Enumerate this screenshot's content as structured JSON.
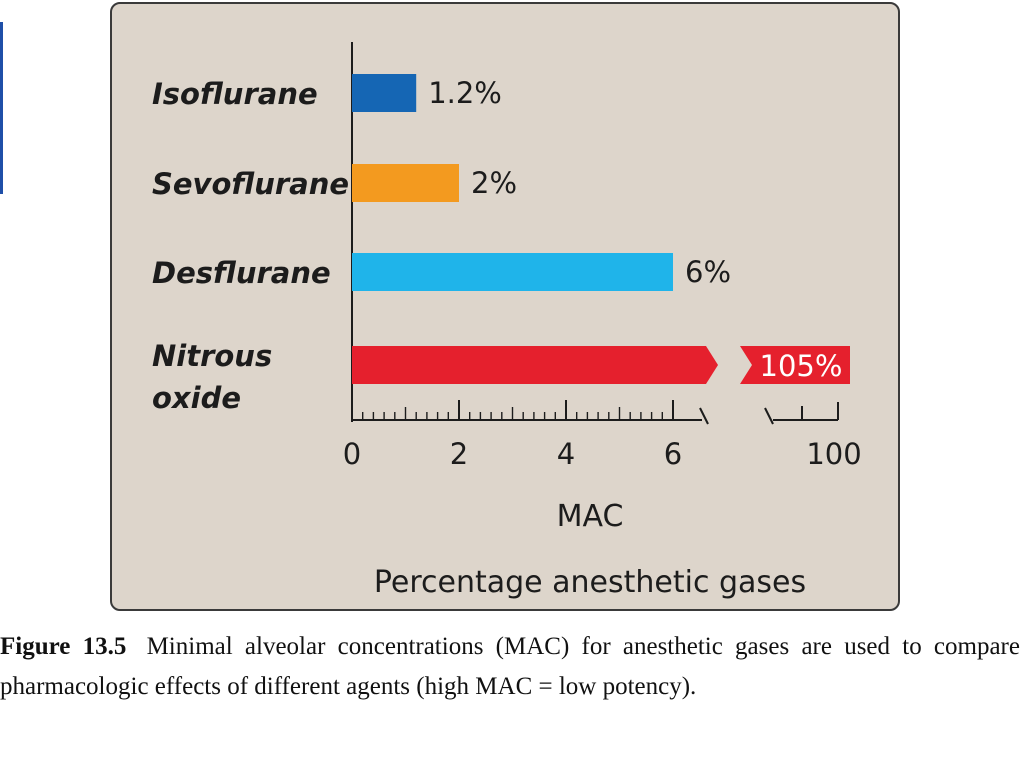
{
  "chart_data": {
    "type": "bar",
    "orientation": "horizontal",
    "title": "",
    "subtitle": "Percentage anesthetic gases",
    "xlabel": "MAC",
    "ylabel": "",
    "categories": [
      "Isoflurane",
      "Sevoflurane",
      "Desflurane",
      "Nitrous oxide"
    ],
    "values": [
      1.2,
      2,
      6,
      105
    ],
    "value_labels": [
      "1.2%",
      "2%",
      "6%",
      "105%"
    ],
    "colors": [
      "#1566b4",
      "#f39a1f",
      "#1fb4ea",
      "#e5202d"
    ],
    "xlim": [
      0,
      100
    ],
    "axis_break": [
      6.6,
      100
    ],
    "x_ticks": [
      "0",
      "2",
      "4",
      "6",
      "100"
    ],
    "grid": false,
    "legend": "none"
  },
  "caption": {
    "label": "Figure 13.5",
    "text": "Minimal alveolar concentrations (MAC) for anesthetic gases are used to compare pharmacologic effects of different agents (high MAC = low potency)."
  }
}
